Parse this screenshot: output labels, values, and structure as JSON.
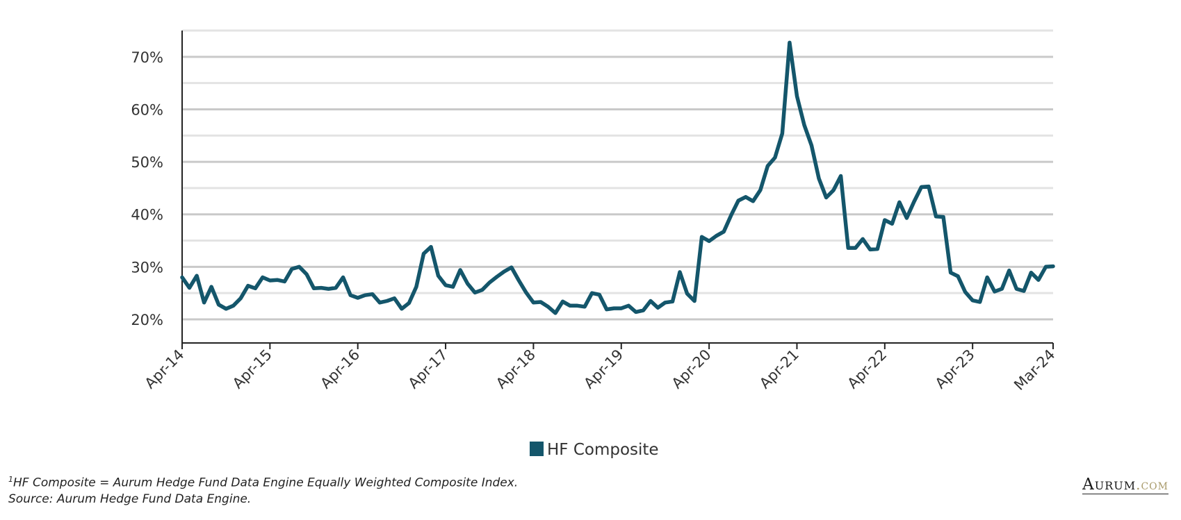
{
  "chart_data": {
    "type": "line",
    "title": "",
    "xlabel": "",
    "ylabel": "",
    "ylim": [
      15.5,
      75
    ],
    "y_ticks": [
      {
        "value": 20,
        "label": "20%"
      },
      {
        "value": 30,
        "label": "30%"
      },
      {
        "value": 40,
        "label": "40%"
      },
      {
        "value": 50,
        "label": "50%"
      },
      {
        "value": 60,
        "label": "60%"
      },
      {
        "value": 70,
        "label": "70%"
      }
    ],
    "y_minor_grid": [
      25,
      35,
      45,
      55,
      65,
      75
    ],
    "x_ticks": [
      {
        "label": "Apr-14",
        "index": 0
      },
      {
        "label": "Apr-15",
        "index": 12
      },
      {
        "label": "Apr-16",
        "index": 24
      },
      {
        "label": "Apr-17",
        "index": 36
      },
      {
        "label": "Apr-18",
        "index": 48
      },
      {
        "label": "Apr-19",
        "index": 60
      },
      {
        "label": "Apr-20",
        "index": 72
      },
      {
        "label": "Apr-21",
        "index": 84
      },
      {
        "label": "Apr-22",
        "index": 96
      },
      {
        "label": "Apr-23",
        "index": 108
      },
      {
        "label": "Mar-24",
        "index": 119
      }
    ],
    "grid": true,
    "legend_position": "bottom-center",
    "series": [
      {
        "name": "HF Composite",
        "color": "#14566b",
        "values": [
          28.0,
          26.0,
          28.3,
          23.2,
          26.2,
          22.8,
          22.0,
          22.6,
          24.0,
          26.4,
          25.9,
          28.0,
          27.4,
          27.5,
          27.2,
          29.6,
          30.0,
          28.6,
          25.9,
          26.0,
          25.8,
          26.0,
          28.0,
          24.6,
          24.1,
          24.6,
          24.8,
          23.2,
          23.5,
          24.0,
          22.0,
          23.1,
          26.2,
          32.5,
          33.8,
          28.3,
          26.5,
          26.2,
          29.4,
          26.8,
          25.1,
          25.6,
          27.0,
          28.1,
          29.1,
          29.9,
          27.4,
          25.1,
          23.2,
          23.3,
          22.4,
          21.2,
          23.4,
          22.6,
          22.6,
          22.4,
          25.0,
          24.7,
          21.9,
          22.1,
          22.1,
          22.6,
          21.4,
          21.7,
          23.5,
          22.2,
          23.2,
          23.4,
          29.0,
          24.9,
          23.5,
          35.7,
          34.9,
          35.9,
          36.7,
          39.8,
          42.6,
          43.3,
          42.5,
          44.6,
          49.2,
          50.8,
          55.4,
          72.7,
          62.5,
          57.0,
          53.1,
          46.8,
          43.2,
          44.6,
          47.3,
          33.6,
          33.6,
          35.3,
          33.3,
          33.4,
          38.9,
          38.2,
          42.3,
          39.3,
          42.4,
          45.2,
          45.3,
          39.6,
          39.5,
          28.9,
          28.2,
          25.2,
          23.6,
          23.3,
          28.0,
          25.3,
          25.8,
          29.3,
          25.8,
          25.4,
          28.9,
          27.5,
          30.0,
          30.1
        ]
      }
    ]
  },
  "legend": {
    "label": "HF Composite",
    "color": "#14566b"
  },
  "footnotes": {
    "line1_marker": "1",
    "line1": "HF Composite = Aurum Hedge Fund Data Engine Equally Weighted Composite Index.",
    "line2": "Source: Aurum Hedge Fund Data Engine."
  },
  "logo": {
    "main": "Aurum",
    "ext": ".com"
  }
}
